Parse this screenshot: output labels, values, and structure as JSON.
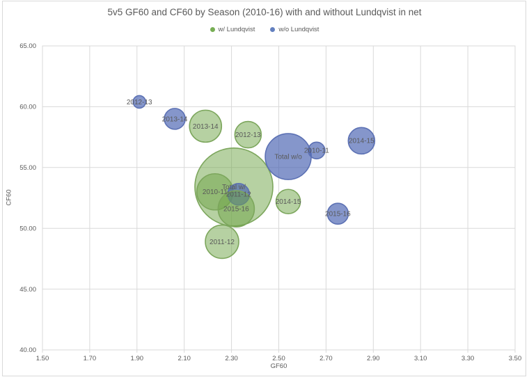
{
  "chart_data": {
    "type": "bubble",
    "title": "5v5 GF60 and CF60 by Season (2010-16) with and without Lundqvist in net",
    "xlabel": "GF60",
    "ylabel": "CF60",
    "xlim": [
      1.5,
      3.5
    ],
    "ylim": [
      40,
      65
    ],
    "grid": true,
    "legend_position": "top-center",
    "x_ticks": {
      "values": [
        1.5,
        1.7,
        1.9,
        2.1,
        2.3,
        2.5,
        2.7,
        2.9,
        3.1,
        3.3,
        3.5
      ],
      "labels": [
        "1.50",
        "1.70",
        "1.90",
        "2.10",
        "2.30",
        "2.50",
        "2.70",
        "2.90",
        "3.10",
        "3.30",
        "3.50"
      ]
    },
    "y_ticks": {
      "values": [
        65,
        60,
        55,
        50,
        45,
        40
      ],
      "labels": [
        "65.00",
        "60.00",
        "55.00",
        "50.00",
        "45.00",
        "40.00"
      ]
    },
    "colors": {
      "text": "#595959",
      "gridline": "#D9D9D9",
      "frame_border": "#D9D9D9",
      "plot_border": "#D9D9D9"
    },
    "series": [
      {
        "name": "w/ Lundqvist",
        "fill": "rgba(110,164,70,0.50)",
        "stroke": "#7CA65C",
        "legend_color": "#77AE54",
        "points": [
          {
            "label": "2010-11",
            "x": 2.23,
            "y": 53.0,
            "r": 26,
            "z": 2
          },
          {
            "label": "2011-12",
            "x": 2.26,
            "y": 48.9,
            "r": 24,
            "z": 9
          },
          {
            "label": "2012-13",
            "x": 2.37,
            "y": 57.7,
            "r": 19,
            "z": 7
          },
          {
            "label": "2013-14",
            "x": 2.19,
            "y": 58.4,
            "r": 23,
            "z": 6
          },
          {
            "label": "2014-15",
            "x": 2.54,
            "y": 52.2,
            "r": 17.5,
            "z": 8
          },
          {
            "label": "2015-16",
            "x": 2.32,
            "y": 51.6,
            "r": 26,
            "z": 4
          },
          {
            "label": "Total w/",
            "x": 2.31,
            "y": 53.4,
            "r": 56,
            "z": 1
          }
        ]
      },
      {
        "name": "w/o Lundqvist",
        "fill": "rgba(75,100,178,0.68)",
        "stroke": "#5C71B4",
        "legend_color": "#6380BF",
        "points": [
          {
            "label": "2010-11",
            "x": 2.66,
            "y": 56.4,
            "r": 12,
            "z": 12
          },
          {
            "label": "2011-12",
            "x": 2.33,
            "y": 52.8,
            "r": 15.5,
            "z": 3
          },
          {
            "label": "2012-13",
            "x": 1.91,
            "y": 60.4,
            "r": 9,
            "z": 10
          },
          {
            "label": "2013-14",
            "x": 2.06,
            "y": 59.0,
            "r": 15,
            "z": 5
          },
          {
            "label": "2014-15",
            "x": 2.85,
            "y": 57.2,
            "r": 19,
            "z": 13
          },
          {
            "label": "2015-16",
            "x": 2.75,
            "y": 51.2,
            "r": 15,
            "z": 14
          },
          {
            "label": "Total w/o",
            "x": 2.54,
            "y": 55.9,
            "r": 33,
            "z": 11
          }
        ]
      }
    ]
  }
}
